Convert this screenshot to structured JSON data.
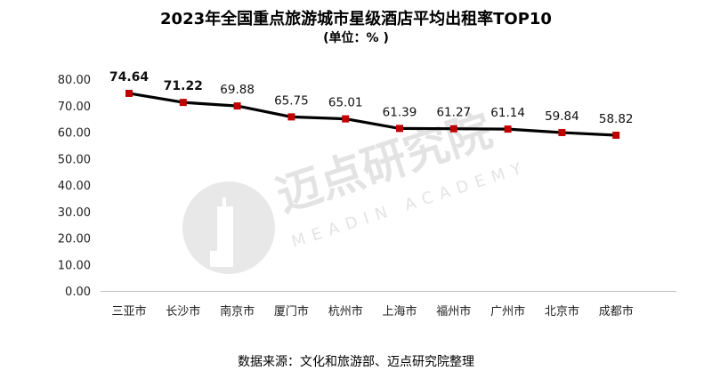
{
  "chart_data": {
    "type": "line",
    "title": "2023年全国重点旅游城市星级酒店平均出租率TOP10",
    "subtitle": "(单位：% )",
    "categories": [
      "三亚市",
      "长沙市",
      "南京市",
      "厦门市",
      "杭州市",
      "上海市",
      "福州市",
      "广州市",
      "北京市",
      "成都市"
    ],
    "series": [
      {
        "values": [
          74.64,
          71.22,
          69.88,
          65.75,
          65.01,
          61.39,
          61.27,
          61.14,
          59.84,
          58.82
        ],
        "data_labels": [
          "74.64",
          "71.22",
          "69.88",
          "65.75",
          "65.01",
          "61.39",
          "61.27",
          "61.14",
          "59.84",
          "58.82"
        ],
        "line_color": "#000000",
        "marker_color": "#c00000"
      }
    ],
    "ylim": [
      0,
      80
    ],
    "yticks": [
      "0.00",
      "10.00",
      "20.00",
      "30.00",
      "40.00",
      "50.00",
      "60.00",
      "70.00",
      "80.00"
    ],
    "xlabel": "",
    "ylabel": "",
    "grid": false,
    "legend": "none"
  },
  "watermark": {
    "brand": "迈点研究院",
    "sub": "MEADIN ACADEMY"
  },
  "source": "数据来源：文化和旅游部、迈点研究院整理"
}
